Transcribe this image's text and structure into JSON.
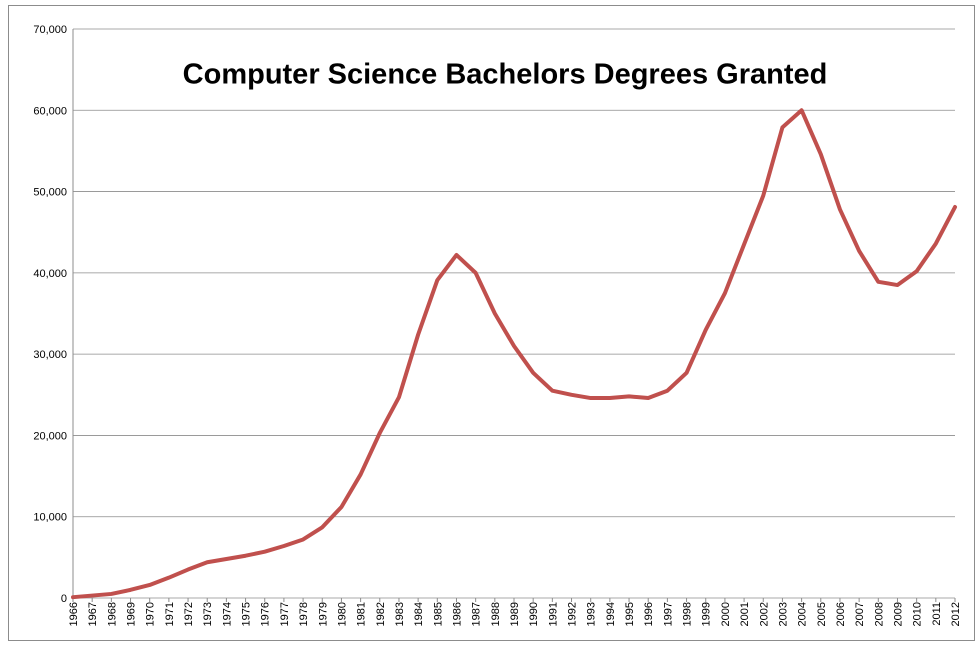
{
  "chart_data": {
    "type": "line",
    "title": "Computer Science Bachelors Degrees Granted",
    "categories": [
      "1966",
      "1967",
      "1968",
      "1969",
      "1970",
      "1971",
      "1972",
      "1973",
      "1974",
      "1975",
      "1976",
      "1977",
      "1978",
      "1979",
      "1980",
      "1981",
      "1982",
      "1983",
      "1984",
      "1985",
      "1986",
      "1987",
      "1988",
      "1989",
      "1990",
      "1991",
      "1992",
      "1993",
      "1994",
      "1995",
      "1996",
      "1997",
      "1998",
      "1999",
      "2000",
      "2001",
      "2002",
      "2003",
      "2004",
      "2005",
      "2006",
      "2007",
      "2008",
      "2009",
      "2010",
      "2011",
      "2012"
    ],
    "values": [
      100,
      300,
      500,
      1000,
      1600,
      2500,
      3500,
      4400,
      4800,
      5200,
      5700,
      6400,
      7200,
      8700,
      11200,
      15200,
      20300,
      24700,
      32400,
      39100,
      42200,
      40000,
      35000,
      31000,
      27700,
      25500,
      25000,
      24600,
      24600,
      24800,
      24600,
      25500,
      27700,
      33000,
      37500,
      43500,
      49500,
      57900,
      60000,
      54600,
      47800,
      42700,
      38900,
      38500,
      40200,
      43600,
      48100
    ],
    "color": "#c0504d",
    "ylim": [
      0,
      70000
    ],
    "yticks": [
      0,
      {
        "value": 10000,
        "label": "10,000"
      },
      {
        "value": 20000,
        "label": "20,000"
      },
      {
        "value": 30000,
        "label": "30,000"
      },
      {
        "value": 40000,
        "label": "40,000"
      },
      {
        "value": 50000,
        "label": "50,000"
      },
      {
        "value": 60000,
        "label": "60,000"
      },
      {
        "value": 70000,
        "label": "70,000"
      }
    ],
    "grid": true
  }
}
